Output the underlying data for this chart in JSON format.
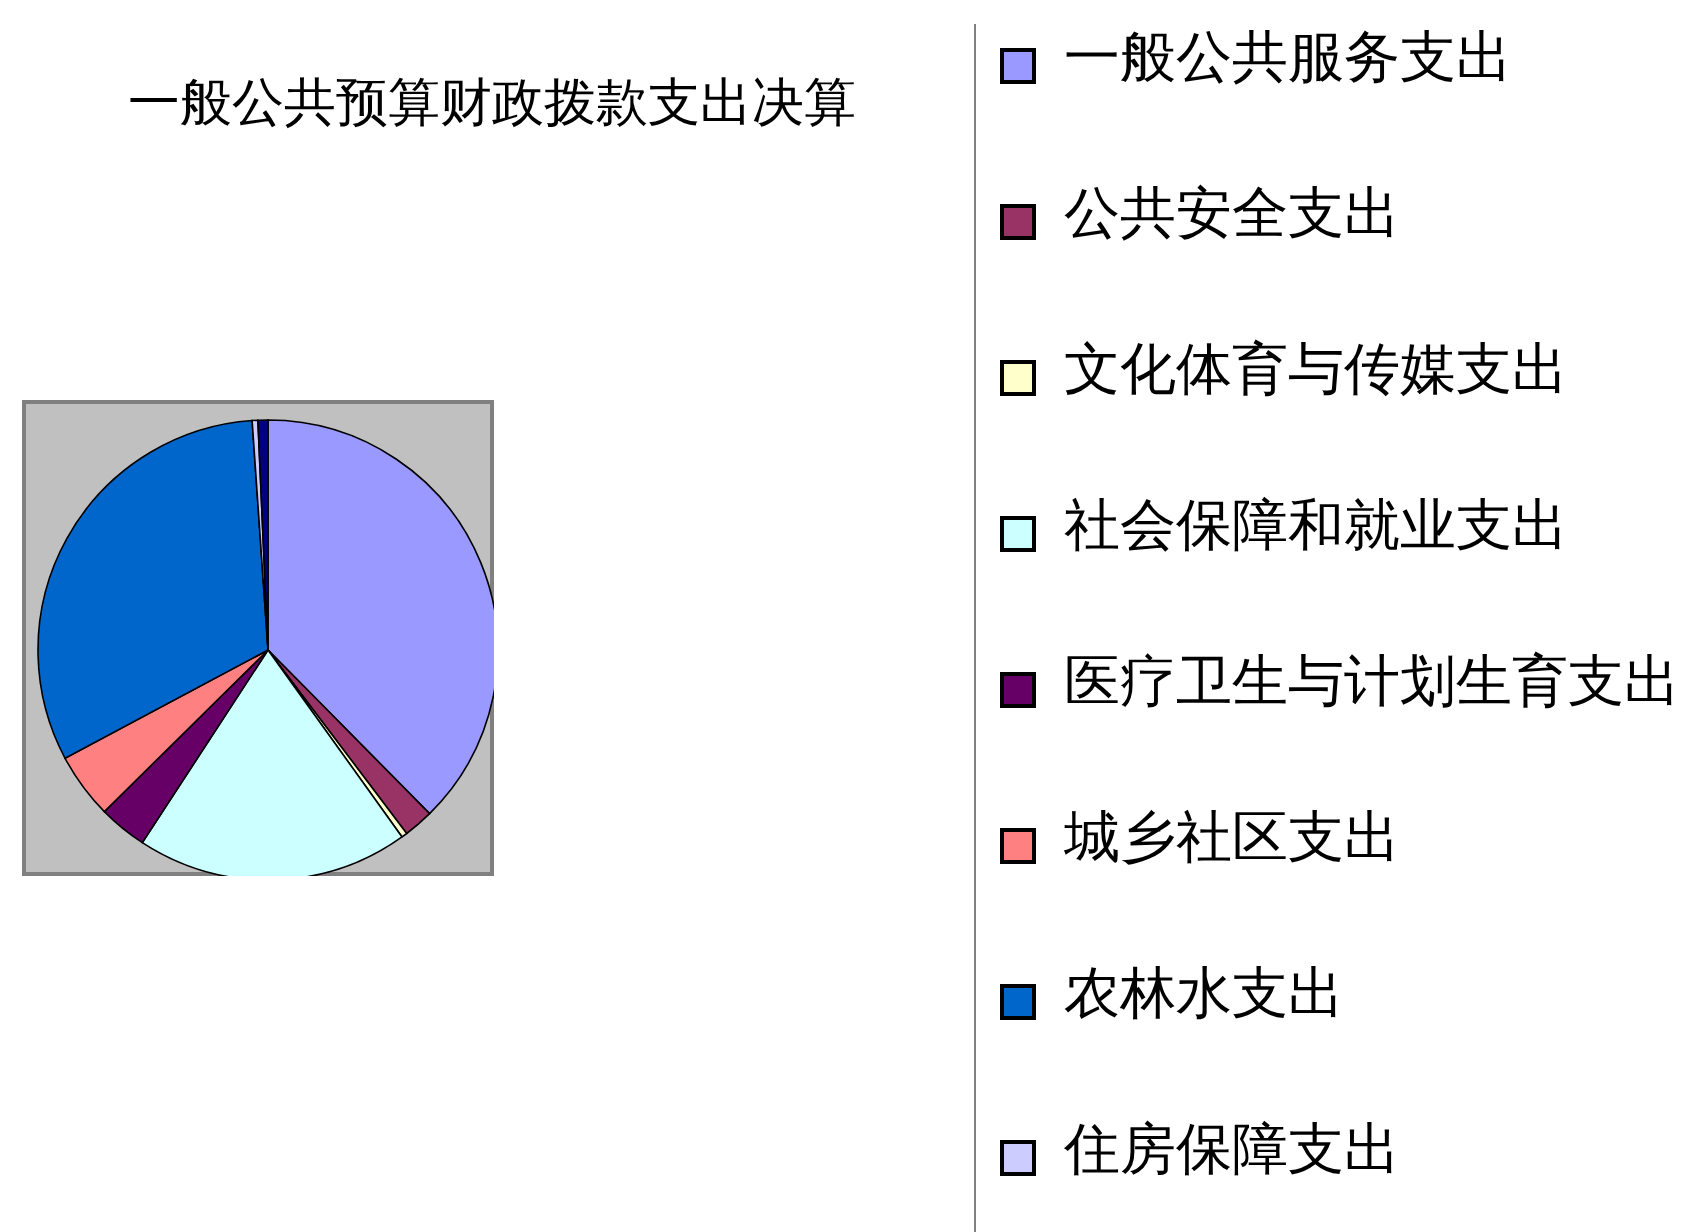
{
  "chart_data": {
    "type": "pie",
    "title": "一般公共预算财政拨款支出决算",
    "categories": [
      "一般公共服务支出",
      "公共安全支出",
      "文化体育与传媒支出",
      "社会保障和就业支出",
      "医疗卫生与计划生育支出",
      "城乡社区支出",
      "农林水支出",
      "住房保障支出",
      null
    ],
    "values": [
      37.6,
      2.1,
      0.4,
      19.1,
      3.4,
      4.6,
      31.7,
      0.4,
      0.7
    ],
    "colors": [
      "#9999ff",
      "#993366",
      "#ffffcc",
      "#ccffff",
      "#660066",
      "#ff8080",
      "#0066cc",
      "#ccccff",
      "#000080"
    ],
    "legend": "right"
  }
}
